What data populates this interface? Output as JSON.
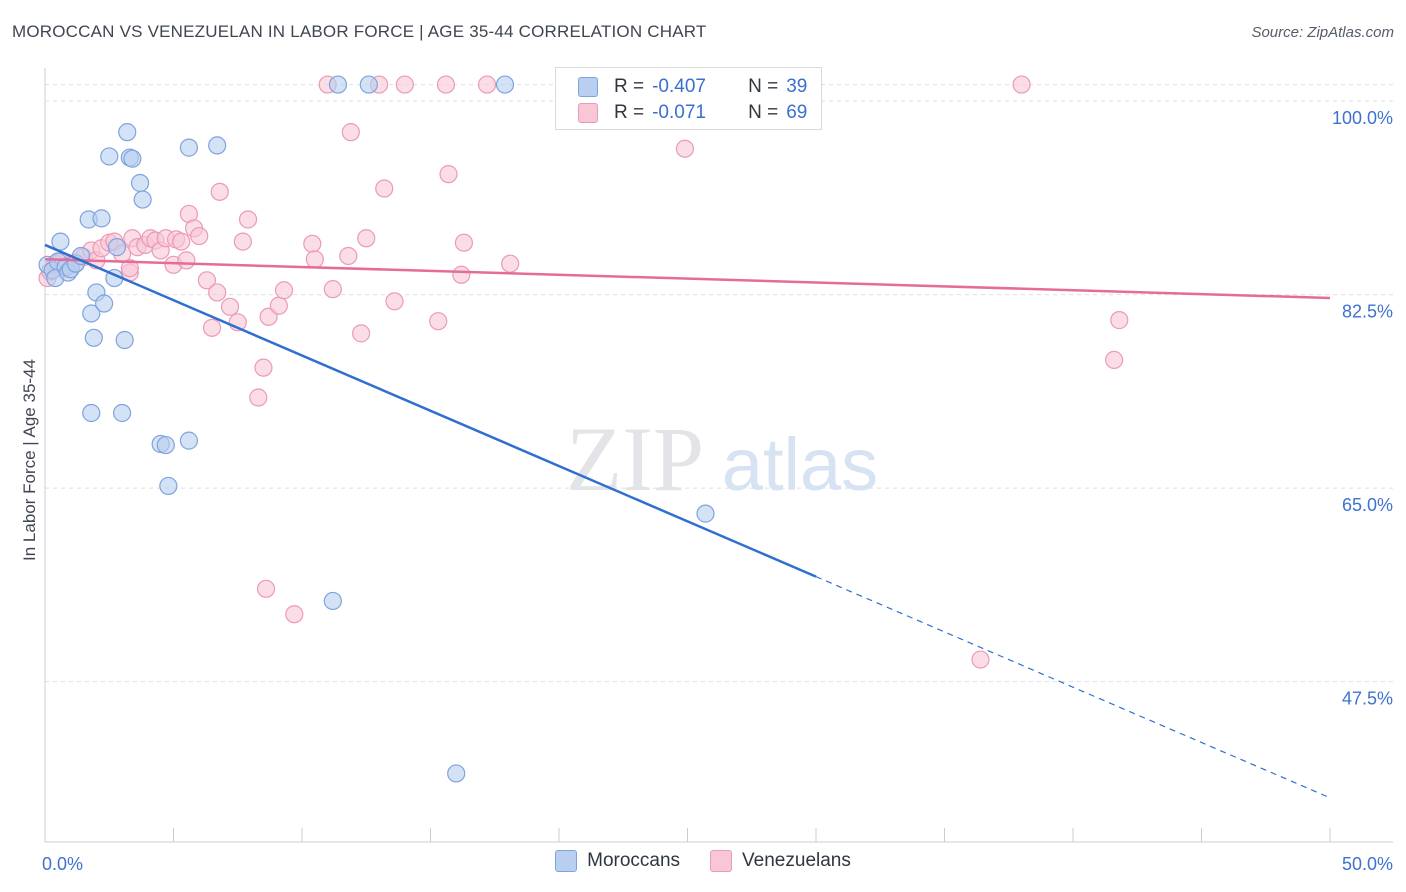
{
  "title": "MOROCCAN VS VENEZUELAN IN LABOR FORCE | AGE 35-44 CORRELATION CHART",
  "source": "Source: ZipAtlas.com",
  "watermark": {
    "zip": "ZIP",
    "atlas": "atlas"
  },
  "legend": {
    "series": [
      {
        "r_label": "R =",
        "r_value": "-0.407",
        "n_label": "N =",
        "n_value": "39"
      },
      {
        "r_label": "R =",
        "r_value": "-0.071",
        "n_label": "N =",
        "n_value": "69"
      }
    ]
  },
  "colors": {
    "blue_fill": "#b8cff0",
    "blue_stroke": "#7fa3de",
    "blue_line": "#2f6fce",
    "pink_fill": "#f8c6d6",
    "pink_stroke": "#eb9ab7",
    "pink_line": "#e66b98",
    "axis_text": "#3d72cf",
    "grid": "#dcdfe4"
  },
  "chart_data": {
    "type": "scatter",
    "title": "MOROCCAN VS VENEZUELAN IN LABOR FORCE | AGE 35-44 CORRELATION CHART",
    "xlabel": "",
    "ylabel": "In Labor Force | Age 35-44",
    "xlim": [
      0,
      50
    ],
    "ylim": [
      33,
      103
    ],
    "x_tick_labels": [
      "0.0%",
      "50.0%"
    ],
    "y_ticks": [
      47.5,
      65.0,
      82.5,
      100.0
    ],
    "y_tick_labels": [
      "47.5%",
      "65.0%",
      "82.5%",
      "100.0%"
    ],
    "grid": true,
    "series": [
      {
        "name": "Moroccans",
        "color": "#7fa3de",
        "points": [
          [
            0.1,
            85.2
          ],
          [
            0.3,
            84.7
          ],
          [
            0.4,
            84.0
          ],
          [
            0.5,
            85.5
          ],
          [
            0.6,
            87.3
          ],
          [
            0.8,
            85.0
          ],
          [
            0.9,
            84.5
          ],
          [
            1.0,
            84.8
          ],
          [
            1.2,
            85.3
          ],
          [
            1.4,
            86.0
          ],
          [
            1.7,
            89.3
          ],
          [
            1.8,
            80.8
          ],
          [
            1.9,
            78.6
          ],
          [
            2.0,
            82.7
          ],
          [
            2.2,
            89.4
          ],
          [
            2.3,
            81.7
          ],
          [
            2.5,
            95.0
          ],
          [
            2.7,
            84.0
          ],
          [
            2.8,
            86.8
          ],
          [
            3.1,
            78.4
          ],
          [
            3.2,
            97.2
          ],
          [
            3.3,
            94.9
          ],
          [
            3.4,
            94.8
          ],
          [
            3.7,
            92.6
          ],
          [
            3.8,
            91.1
          ],
          [
            4.5,
            69.0
          ],
          [
            4.7,
            68.9
          ],
          [
            4.8,
            65.2
          ],
          [
            5.6,
            95.8
          ],
          [
            5.6,
            69.3
          ],
          [
            6.7,
            96.0
          ],
          [
            11.4,
            101.5
          ],
          [
            12.6,
            101.5
          ],
          [
            16.0,
            39.2
          ],
          [
            17.9,
            101.5
          ],
          [
            25.7,
            62.7
          ],
          [
            11.2,
            54.8
          ],
          [
            1.8,
            71.8
          ],
          [
            3.0,
            71.8
          ]
        ],
        "trend_solid": [
          [
            0.0,
            87.0
          ],
          [
            30.0,
            57.0
          ]
        ],
        "trend_dashed": [
          [
            30.0,
            57.0
          ],
          [
            50.0,
            37.0
          ]
        ]
      },
      {
        "name": "Venezuelans",
        "color": "#eb9ab7",
        "points": [
          [
            0.1,
            84.0
          ],
          [
            0.2,
            84.6
          ],
          [
            0.4,
            85.3
          ],
          [
            0.6,
            85.5
          ],
          [
            0.8,
            84.9
          ],
          [
            1.0,
            85.2
          ],
          [
            1.2,
            85.4
          ],
          [
            1.5,
            85.9
          ],
          [
            1.8,
            86.5
          ],
          [
            2.0,
            85.6
          ],
          [
            2.2,
            86.7
          ],
          [
            2.5,
            87.2
          ],
          [
            2.7,
            87.3
          ],
          [
            3.0,
            86.2
          ],
          [
            3.3,
            84.5
          ],
          [
            3.4,
            87.6
          ],
          [
            3.6,
            86.8
          ],
          [
            3.9,
            87.0
          ],
          [
            4.1,
            87.6
          ],
          [
            4.3,
            87.4
          ],
          [
            4.5,
            86.5
          ],
          [
            4.7,
            87.6
          ],
          [
            5.0,
            85.2
          ],
          [
            5.1,
            87.5
          ],
          [
            5.3,
            87.3
          ],
          [
            5.5,
            85.6
          ],
          [
            5.6,
            89.8
          ],
          [
            5.8,
            88.5
          ],
          [
            6.0,
            87.8
          ],
          [
            6.3,
            83.8
          ],
          [
            6.5,
            79.5
          ],
          [
            6.7,
            82.7
          ],
          [
            6.8,
            91.8
          ],
          [
            7.2,
            81.4
          ],
          [
            7.5,
            80.0
          ],
          [
            7.7,
            87.3
          ],
          [
            7.9,
            89.3
          ],
          [
            8.3,
            73.2
          ],
          [
            8.5,
            75.9
          ],
          [
            8.6,
            55.9
          ],
          [
            8.7,
            80.5
          ],
          [
            9.1,
            81.5
          ],
          [
            9.3,
            82.9
          ],
          [
            9.7,
            53.6
          ],
          [
            10.4,
            87.1
          ],
          [
            10.5,
            85.7
          ],
          [
            11.0,
            101.5
          ],
          [
            11.2,
            83.0
          ],
          [
            11.8,
            86.0
          ],
          [
            11.9,
            97.2
          ],
          [
            12.3,
            79.0
          ],
          [
            12.5,
            87.6
          ],
          [
            13.2,
            92.1
          ],
          [
            13.6,
            81.9
          ],
          [
            14.0,
            101.5
          ],
          [
            15.3,
            80.1
          ],
          [
            15.7,
            93.4
          ],
          [
            16.2,
            84.3
          ],
          [
            16.3,
            87.2
          ],
          [
            17.2,
            101.5
          ],
          [
            18.1,
            85.3
          ],
          [
            24.9,
            95.7
          ],
          [
            38.0,
            101.5
          ],
          [
            41.8,
            80.2
          ],
          [
            41.6,
            76.6
          ],
          [
            36.4,
            49.5
          ],
          [
            13.0,
            101.5
          ],
          [
            15.6,
            101.5
          ],
          [
            3.3,
            84.9
          ]
        ],
        "trend_solid": [
          [
            0.0,
            85.7
          ],
          [
            50.0,
            82.2
          ]
        ]
      }
    ]
  },
  "bottom_legend": {
    "items": [
      "Moroccans",
      "Venezuelans"
    ]
  }
}
